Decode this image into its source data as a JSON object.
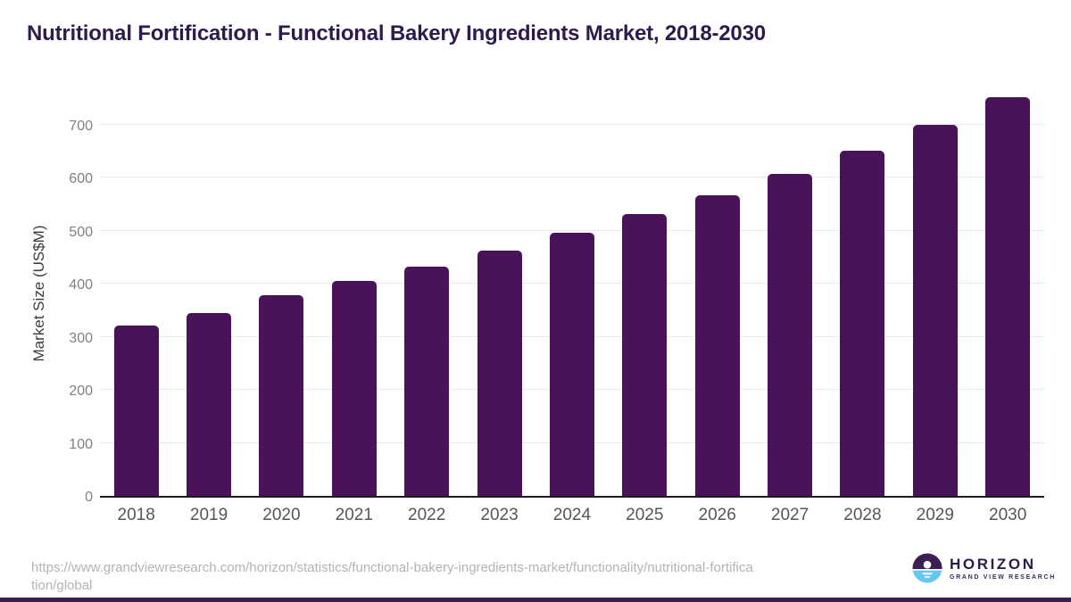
{
  "title": "Nutritional Fortification - Functional Bakery Ingredients Market, 2018-2030",
  "chart_data": {
    "type": "bar",
    "categories": [
      "2018",
      "2019",
      "2020",
      "2021",
      "2022",
      "2023",
      "2024",
      "2025",
      "2026",
      "2027",
      "2028",
      "2029",
      "2030"
    ],
    "values": [
      322,
      345,
      378,
      405,
      433,
      463,
      496,
      531,
      567,
      608,
      651,
      700,
      753
    ],
    "title": "Nutritional Fortification - Functional Bakery Ingredients Market, 2018-2030",
    "xlabel": "",
    "ylabel": "Market Size (US$M)",
    "ylim": [
      0,
      770
    ],
    "yticks": [
      0,
      100,
      200,
      300,
      400,
      500,
      600,
      700
    ],
    "grid": "horizontal-only",
    "legend": "none",
    "bar_color": "#4a1259"
  },
  "footer": {
    "source_url_line1": "https://www.grandviewresearch.com/horizon/statistics/functional-bakery-ingredients-market/functionality/nutritional-fortifica",
    "source_url_line2": "tion/global",
    "logo": {
      "name": "HORIZON",
      "tagline": "GRAND VIEW RESEARCH",
      "icon": "horizon-sunset-icon",
      "icon_purple": "#3b1e52",
      "icon_blue": "#67c7f1"
    }
  },
  "colors": {
    "title_text": "#2e1a4d",
    "bar": "#4a1259",
    "gridline": "#e8e8e8",
    "axis_line": "#1f1f1f",
    "y_tick_text": "#808080",
    "x_tick_text": "#565656",
    "url_text": "#b3b3b3",
    "bottom_bar": "#3b1e52"
  }
}
